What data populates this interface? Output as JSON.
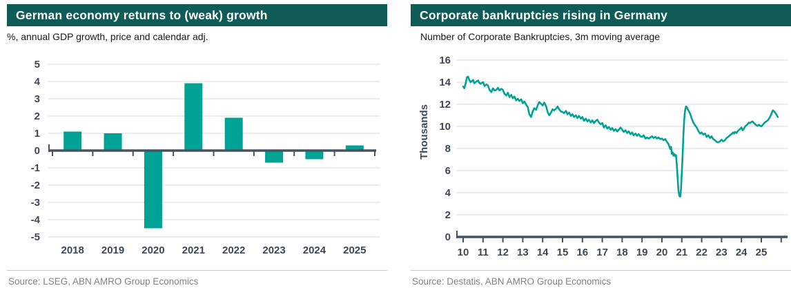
{
  "colors": {
    "header_bg": "#0E5C55",
    "series_teal": "#00A296",
    "axis_dark": "#46525E",
    "tick_label": "#3C4858",
    "gridline": "#D9D9D9",
    "source_text": "#828282"
  },
  "panels": [
    {
      "title": "German economy returns to (weak) growth",
      "subtitle": "%, annual GDP growth, price and calendar adj.",
      "source": "Source: LSEG, ABN AMRO Group Economics"
    },
    {
      "title": "Corporate bankruptcies rising in Germany",
      "subtitle": "Number of Corporate Bankruptcies, 3m moving average",
      "source": "Source: Destatis, ABN AMRO Group Economics"
    }
  ],
  "chart_data": [
    {
      "type": "bar",
      "title": "German economy returns to (weak) growth",
      "subtitle": "%, annual GDP growth, price and calendar adj.",
      "categories": [
        "2018",
        "2019",
        "2020",
        "2021",
        "2022",
        "2023",
        "2024",
        "2025"
      ],
      "values": [
        1.1,
        1.0,
        -4.5,
        3.9,
        1.9,
        -0.7,
        -0.5,
        0.3
      ],
      "ylim": [
        -5,
        5
      ],
      "y_ticks": [
        5,
        4,
        3,
        2,
        1,
        0,
        -1,
        -2,
        -3,
        -4,
        -5
      ],
      "grid": true,
      "legend": "none"
    },
    {
      "type": "line",
      "title": "Corporate bankruptcies rising in Germany",
      "subtitle": "Number of Corporate Bankruptcies, 3m moving average",
      "ylabel": "Thousands",
      "ylim": [
        0,
        16
      ],
      "y_ticks": [
        16,
        14,
        12,
        10,
        8,
        6,
        4,
        2,
        0
      ],
      "x_ticks": [
        {
          "year": 2010,
          "label": "10"
        },
        {
          "year": 2011,
          "label": "11"
        },
        {
          "year": 2012,
          "label": "12"
        },
        {
          "year": 2013,
          "label": "13"
        },
        {
          "year": 2014,
          "label": "14"
        },
        {
          "year": 2015,
          "label": "15"
        },
        {
          "year": 2016,
          "label": "16"
        },
        {
          "year": 2017,
          "label": "17"
        },
        {
          "year": 2018,
          "label": "18"
        },
        {
          "year": 2019,
          "label": "19"
        },
        {
          "year": 2020,
          "label": "20"
        },
        {
          "year": 2021,
          "label": "21"
        },
        {
          "year": 2022,
          "label": "22"
        },
        {
          "year": 2023,
          "label": "23"
        },
        {
          "year": 2024,
          "label": "24"
        },
        {
          "year": 2025,
          "label": "25"
        }
      ],
      "grid": true,
      "legend": "none",
      "points": [
        [
          2010.0,
          13.6
        ],
        [
          2010.06,
          13.45
        ],
        [
          2010.13,
          13.9
        ],
        [
          2010.19,
          14.45
        ],
        [
          2010.25,
          14.5
        ],
        [
          2010.31,
          14.2
        ],
        [
          2010.38,
          14.0
        ],
        [
          2010.44,
          14.1
        ],
        [
          2010.5,
          14.2
        ],
        [
          2010.56,
          13.9
        ],
        [
          2010.63,
          14.0
        ],
        [
          2010.69,
          14.1
        ],
        [
          2010.75,
          14.15
        ],
        [
          2010.81,
          13.95
        ],
        [
          2010.88,
          13.85
        ],
        [
          2010.94,
          13.95
        ],
        [
          2011.0,
          14.0
        ],
        [
          2011.08,
          13.65
        ],
        [
          2011.17,
          13.8
        ],
        [
          2011.25,
          13.7
        ],
        [
          2011.33,
          13.3
        ],
        [
          2011.42,
          13.1
        ],
        [
          2011.5,
          13.45
        ],
        [
          2011.58,
          13.25
        ],
        [
          2011.67,
          13.3
        ],
        [
          2011.75,
          13.5
        ],
        [
          2011.83,
          13.25
        ],
        [
          2011.92,
          13.4
        ],
        [
          2012.0,
          13.3
        ],
        [
          2012.08,
          12.95
        ],
        [
          2012.17,
          12.8
        ],
        [
          2012.25,
          13.05
        ],
        [
          2012.33,
          12.65
        ],
        [
          2012.42,
          12.85
        ],
        [
          2012.5,
          12.55
        ],
        [
          2012.58,
          12.7
        ],
        [
          2012.67,
          12.35
        ],
        [
          2012.75,
          12.5
        ],
        [
          2012.83,
          12.3
        ],
        [
          2012.92,
          12.45
        ],
        [
          2013.0,
          12.1
        ],
        [
          2013.08,
          12.25
        ],
        [
          2013.17,
          11.95
        ],
        [
          2013.25,
          11.75
        ],
        [
          2013.33,
          11.1
        ],
        [
          2013.42,
          10.85
        ],
        [
          2013.5,
          11.35
        ],
        [
          2013.58,
          11.65
        ],
        [
          2013.67,
          11.5
        ],
        [
          2013.75,
          11.9
        ],
        [
          2013.83,
          12.2
        ],
        [
          2013.92,
          12.05
        ],
        [
          2014.0,
          11.9
        ],
        [
          2014.08,
          12.15
        ],
        [
          2014.17,
          11.85
        ],
        [
          2014.25,
          11.3
        ],
        [
          2014.33,
          11.0
        ],
        [
          2014.42,
          11.25
        ],
        [
          2014.5,
          11.55
        ],
        [
          2014.58,
          11.45
        ],
        [
          2014.67,
          11.6
        ],
        [
          2014.75,
          11.8
        ],
        [
          2014.83,
          11.55
        ],
        [
          2014.92,
          11.35
        ],
        [
          2015.0,
          11.3
        ],
        [
          2015.08,
          11.2
        ],
        [
          2015.17,
          11.4
        ],
        [
          2015.25,
          11.1
        ],
        [
          2015.33,
          11.25
        ],
        [
          2015.42,
          10.95
        ],
        [
          2015.5,
          11.1
        ],
        [
          2015.58,
          10.85
        ],
        [
          2015.67,
          11.0
        ],
        [
          2015.75,
          10.75
        ],
        [
          2015.83,
          10.95
        ],
        [
          2015.92,
          10.7
        ],
        [
          2016.0,
          10.85
        ],
        [
          2016.08,
          10.5
        ],
        [
          2016.17,
          10.7
        ],
        [
          2016.25,
          10.45
        ],
        [
          2016.33,
          10.6
        ],
        [
          2016.42,
          10.35
        ],
        [
          2016.5,
          10.55
        ],
        [
          2016.58,
          10.3
        ],
        [
          2016.67,
          10.5
        ],
        [
          2016.75,
          10.6
        ],
        [
          2016.83,
          10.35
        ],
        [
          2016.92,
          10.2
        ],
        [
          2017.0,
          10.3
        ],
        [
          2017.08,
          9.9
        ],
        [
          2017.17,
          10.1
        ],
        [
          2017.25,
          9.8
        ],
        [
          2017.33,
          9.95
        ],
        [
          2017.42,
          9.7
        ],
        [
          2017.5,
          9.85
        ],
        [
          2017.58,
          9.6
        ],
        [
          2017.67,
          9.75
        ],
        [
          2017.75,
          9.55
        ],
        [
          2017.83,
          9.7
        ],
        [
          2017.92,
          9.9
        ],
        [
          2018.0,
          9.7
        ],
        [
          2018.08,
          9.5
        ],
        [
          2018.17,
          9.65
        ],
        [
          2018.25,
          9.4
        ],
        [
          2018.33,
          9.55
        ],
        [
          2018.42,
          9.3
        ],
        [
          2018.5,
          9.45
        ],
        [
          2018.58,
          9.2
        ],
        [
          2018.67,
          9.35
        ],
        [
          2018.75,
          9.15
        ],
        [
          2018.83,
          9.3
        ],
        [
          2018.92,
          9.1
        ],
        [
          2019.0,
          9.05
        ],
        [
          2019.08,
          9.2
        ],
        [
          2019.17,
          8.9
        ],
        [
          2019.25,
          9.0
        ],
        [
          2019.33,
          8.9
        ],
        [
          2019.42,
          9.0
        ],
        [
          2019.5,
          9.1
        ],
        [
          2019.58,
          8.95
        ],
        [
          2019.67,
          9.05
        ],
        [
          2019.75,
          8.9
        ],
        [
          2019.83,
          9.0
        ],
        [
          2019.92,
          8.85
        ],
        [
          2020.0,
          8.9
        ],
        [
          2020.08,
          8.75
        ],
        [
          2020.17,
          8.85
        ],
        [
          2020.25,
          8.6
        ],
        [
          2020.33,
          8.4
        ],
        [
          2020.42,
          7.95
        ],
        [
          2020.46,
          8.15
        ],
        [
          2020.5,
          7.5
        ],
        [
          2020.54,
          7.65
        ],
        [
          2020.58,
          7.35
        ],
        [
          2020.63,
          7.5
        ],
        [
          2020.67,
          7.3
        ],
        [
          2020.71,
          7.4
        ],
        [
          2020.75,
          6.5
        ],
        [
          2020.79,
          5.3
        ],
        [
          2020.83,
          4.2
        ],
        [
          2020.88,
          3.7
        ],
        [
          2020.92,
          3.65
        ],
        [
          2020.96,
          4.3
        ],
        [
          2021.0,
          5.8
        ],
        [
          2021.04,
          7.4
        ],
        [
          2021.08,
          9.2
        ],
        [
          2021.13,
          10.8
        ],
        [
          2021.17,
          11.5
        ],
        [
          2021.21,
          11.8
        ],
        [
          2021.25,
          11.75
        ],
        [
          2021.29,
          11.6
        ],
        [
          2021.33,
          11.45
        ],
        [
          2021.42,
          11.15
        ],
        [
          2021.5,
          10.7
        ],
        [
          2021.58,
          10.35
        ],
        [
          2021.67,
          10.1
        ],
        [
          2021.75,
          9.9
        ],
        [
          2021.83,
          9.6
        ],
        [
          2021.92,
          9.35
        ],
        [
          2022.0,
          9.45
        ],
        [
          2022.08,
          9.25
        ],
        [
          2022.17,
          9.35
        ],
        [
          2022.25,
          9.05
        ],
        [
          2022.33,
          9.2
        ],
        [
          2022.42,
          8.95
        ],
        [
          2022.5,
          9.1
        ],
        [
          2022.58,
          8.85
        ],
        [
          2022.67,
          8.75
        ],
        [
          2022.75,
          8.6
        ],
        [
          2022.83,
          8.55
        ],
        [
          2022.92,
          8.65
        ],
        [
          2023.0,
          8.8
        ],
        [
          2023.08,
          8.65
        ],
        [
          2023.17,
          8.75
        ],
        [
          2023.25,
          8.95
        ],
        [
          2023.33,
          9.05
        ],
        [
          2023.42,
          9.2
        ],
        [
          2023.5,
          9.3
        ],
        [
          2023.58,
          9.45
        ],
        [
          2023.63,
          9.35
        ],
        [
          2023.67,
          9.5
        ],
        [
          2023.75,
          9.4
        ],
        [
          2023.83,
          9.6
        ],
        [
          2023.92,
          9.75
        ],
        [
          2024.0,
          9.9
        ],
        [
          2024.06,
          9.65
        ],
        [
          2024.13,
          9.8
        ],
        [
          2024.19,
          10.0
        ],
        [
          2024.25,
          10.1
        ],
        [
          2024.31,
          10.2
        ],
        [
          2024.38,
          10.35
        ],
        [
          2024.44,
          10.3
        ],
        [
          2024.5,
          10.4
        ],
        [
          2024.56,
          10.45
        ],
        [
          2024.63,
          10.3
        ],
        [
          2024.69,
          10.2
        ],
        [
          2024.75,
          10.1
        ],
        [
          2024.81,
          10.05
        ],
        [
          2024.88,
          10.15
        ],
        [
          2024.94,
          10.05
        ],
        [
          2025.0,
          10.0
        ],
        [
          2025.08,
          10.15
        ],
        [
          2025.17,
          10.35
        ],
        [
          2025.25,
          10.45
        ],
        [
          2025.33,
          10.55
        ],
        [
          2025.42,
          10.8
        ],
        [
          2025.5,
          11.1
        ],
        [
          2025.54,
          11.3
        ],
        [
          2025.58,
          11.45
        ],
        [
          2025.63,
          11.4
        ],
        [
          2025.67,
          11.3
        ],
        [
          2025.75,
          11.1
        ],
        [
          2025.83,
          10.85
        ]
      ]
    }
  ]
}
